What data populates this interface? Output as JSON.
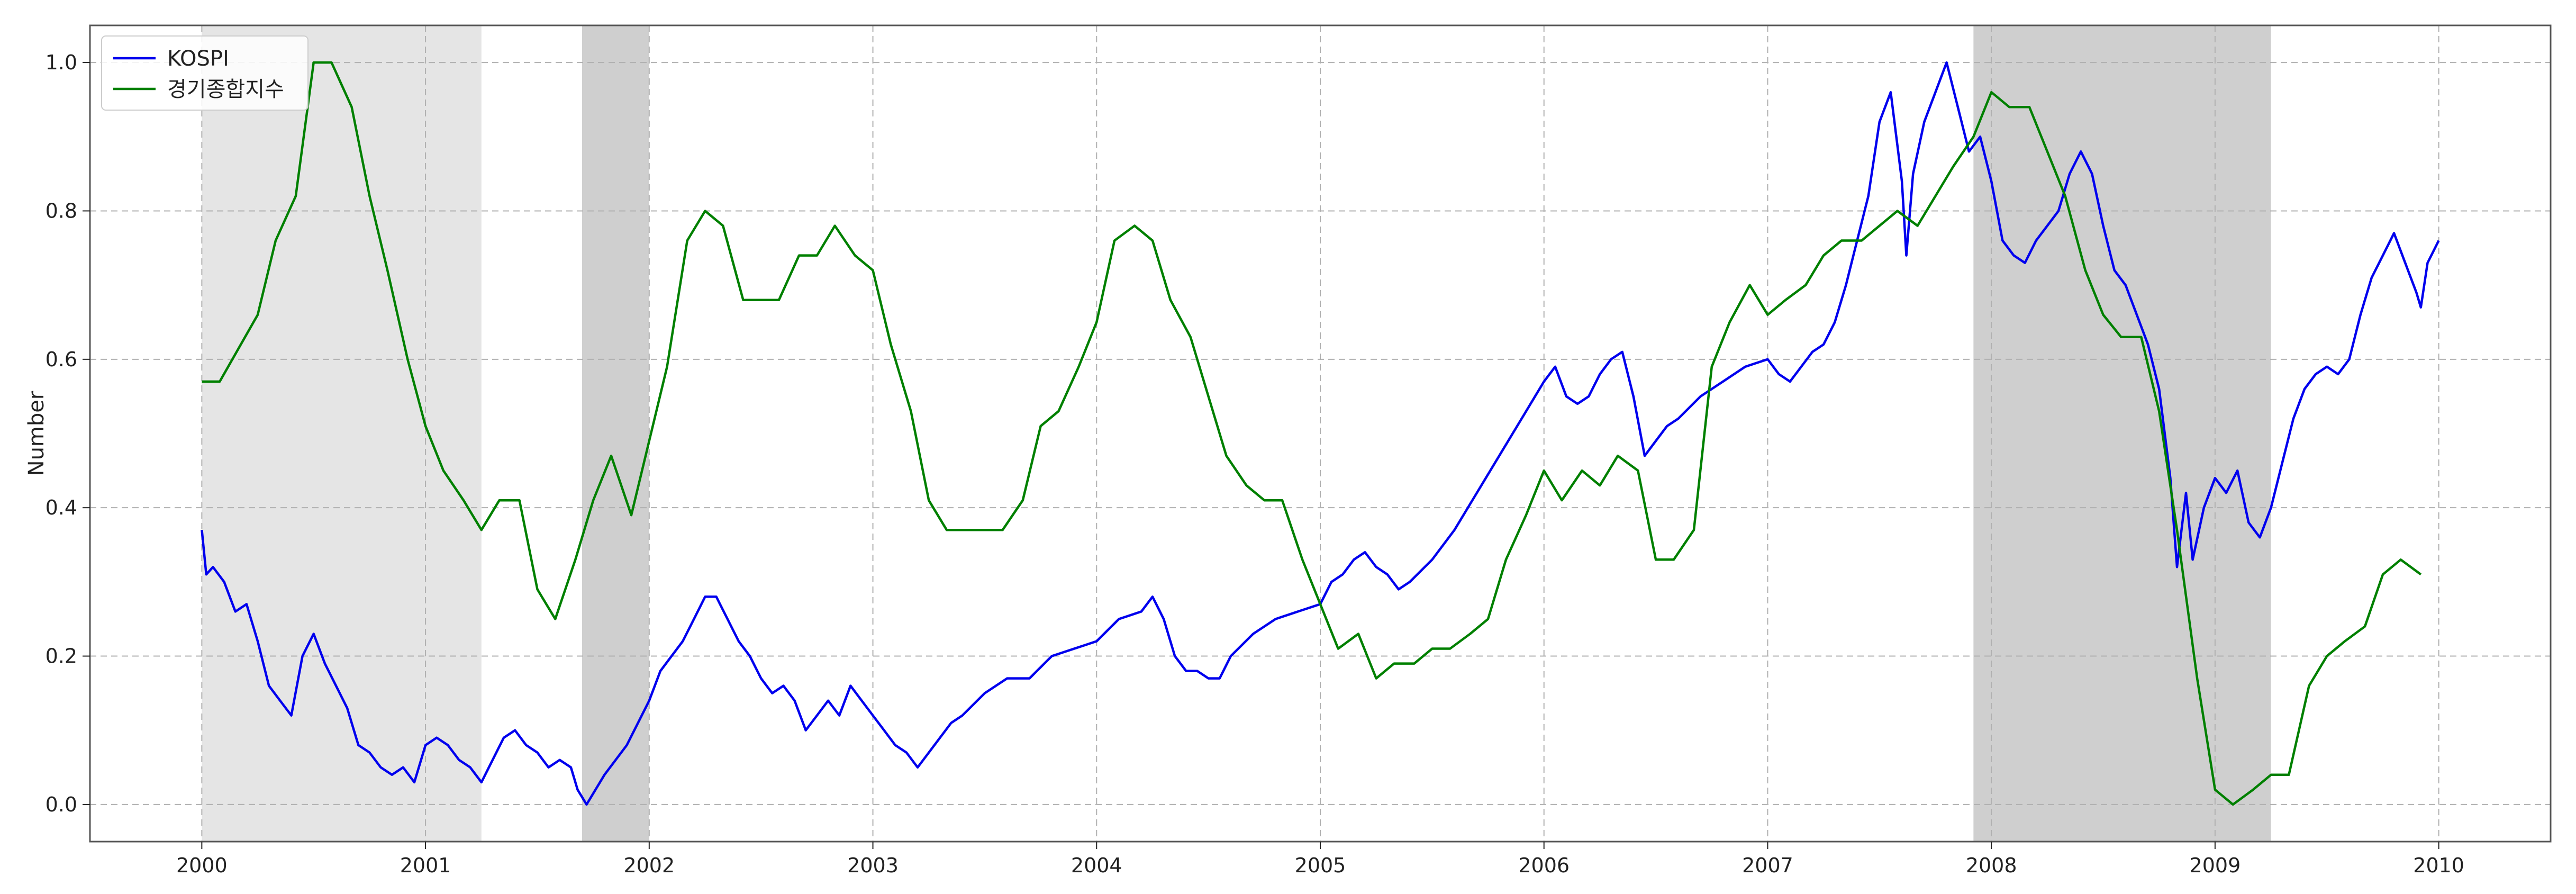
{
  "chart_data": {
    "type": "line",
    "xlabel": "",
    "ylabel": "Number",
    "xlim": [
      1999.5,
      2010.5
    ],
    "ylim": [
      -0.05,
      1.05
    ],
    "x_ticks": [
      "2000",
      "2001",
      "2002",
      "2003",
      "2004",
      "2005",
      "2006",
      "2007",
      "2008",
      "2009",
      "2010"
    ],
    "y_ticks": [
      "0.0",
      "0.2",
      "0.4",
      "0.6",
      "0.8",
      "1.0"
    ],
    "grid": true,
    "legend_position": "top-left",
    "shaded_regions": [
      {
        "start": 2000.0,
        "end": 2001.25,
        "tone": "light"
      },
      {
        "start": 2001.7,
        "end": 2002.0,
        "tone": "dark"
      },
      {
        "start": 2007.92,
        "end": 2009.25,
        "tone": "dark"
      }
    ],
    "colors": {
      "shade_light": "#e5e5e5",
      "shade_dark": "#cfcfcf",
      "grid": "#b0b0b0",
      "axis": "#555555"
    },
    "series": [
      {
        "name": "KOSPI",
        "color": "#0000ee",
        "points": [
          [
            2000.0,
            0.37
          ],
          [
            2000.02,
            0.31
          ],
          [
            2000.05,
            0.32
          ],
          [
            2000.1,
            0.3
          ],
          [
            2000.15,
            0.26
          ],
          [
            2000.2,
            0.27
          ],
          [
            2000.25,
            0.22
          ],
          [
            2000.3,
            0.16
          ],
          [
            2000.35,
            0.14
          ],
          [
            2000.4,
            0.12
          ],
          [
            2000.45,
            0.2
          ],
          [
            2000.5,
            0.23
          ],
          [
            2000.55,
            0.19
          ],
          [
            2000.6,
            0.16
          ],
          [
            2000.65,
            0.13
          ],
          [
            2000.7,
            0.08
          ],
          [
            2000.75,
            0.07
          ],
          [
            2000.8,
            0.05
          ],
          [
            2000.85,
            0.04
          ],
          [
            2000.9,
            0.05
          ],
          [
            2000.95,
            0.03
          ],
          [
            2001.0,
            0.08
          ],
          [
            2001.05,
            0.09
          ],
          [
            2001.1,
            0.08
          ],
          [
            2001.15,
            0.06
          ],
          [
            2001.2,
            0.05
          ],
          [
            2001.25,
            0.03
          ],
          [
            2001.3,
            0.06
          ],
          [
            2001.35,
            0.09
          ],
          [
            2001.4,
            0.1
          ],
          [
            2001.45,
            0.08
          ],
          [
            2001.5,
            0.07
          ],
          [
            2001.55,
            0.05
          ],
          [
            2001.6,
            0.06
          ],
          [
            2001.65,
            0.05
          ],
          [
            2001.68,
            0.02
          ],
          [
            2001.72,
            0.0
          ],
          [
            2001.8,
            0.04
          ],
          [
            2001.9,
            0.08
          ],
          [
            2002.0,
            0.14
          ],
          [
            2002.05,
            0.18
          ],
          [
            2002.1,
            0.2
          ],
          [
            2002.15,
            0.22
          ],
          [
            2002.2,
            0.25
          ],
          [
            2002.25,
            0.28
          ],
          [
            2002.3,
            0.28
          ],
          [
            2002.35,
            0.25
          ],
          [
            2002.4,
            0.22
          ],
          [
            2002.45,
            0.2
          ],
          [
            2002.5,
            0.17
          ],
          [
            2002.55,
            0.15
          ],
          [
            2002.6,
            0.16
          ],
          [
            2002.65,
            0.14
          ],
          [
            2002.7,
            0.1
          ],
          [
            2002.75,
            0.12
          ],
          [
            2002.8,
            0.14
          ],
          [
            2002.85,
            0.12
          ],
          [
            2002.9,
            0.16
          ],
          [
            2002.95,
            0.14
          ],
          [
            2003.0,
            0.12
          ],
          [
            2003.05,
            0.1
          ],
          [
            2003.1,
            0.08
          ],
          [
            2003.15,
            0.07
          ],
          [
            2003.2,
            0.05
          ],
          [
            2003.25,
            0.07
          ],
          [
            2003.3,
            0.09
          ],
          [
            2003.35,
            0.11
          ],
          [
            2003.4,
            0.12
          ],
          [
            2003.5,
            0.15
          ],
          [
            2003.6,
            0.17
          ],
          [
            2003.7,
            0.17
          ],
          [
            2003.8,
            0.2
          ],
          [
            2003.9,
            0.21
          ],
          [
            2004.0,
            0.22
          ],
          [
            2004.1,
            0.25
          ],
          [
            2004.2,
            0.26
          ],
          [
            2004.25,
            0.28
          ],
          [
            2004.3,
            0.25
          ],
          [
            2004.35,
            0.2
          ],
          [
            2004.4,
            0.18
          ],
          [
            2004.45,
            0.18
          ],
          [
            2004.5,
            0.17
          ],
          [
            2004.55,
            0.17
          ],
          [
            2004.6,
            0.2
          ],
          [
            2004.7,
            0.23
          ],
          [
            2004.8,
            0.25
          ],
          [
            2004.9,
            0.26
          ],
          [
            2005.0,
            0.27
          ],
          [
            2005.05,
            0.3
          ],
          [
            2005.1,
            0.31
          ],
          [
            2005.15,
            0.33
          ],
          [
            2005.2,
            0.34
          ],
          [
            2005.25,
            0.32
          ],
          [
            2005.3,
            0.31
          ],
          [
            2005.35,
            0.29
          ],
          [
            2005.4,
            0.3
          ],
          [
            2005.5,
            0.33
          ],
          [
            2005.6,
            0.37
          ],
          [
            2005.7,
            0.42
          ],
          [
            2005.8,
            0.47
          ],
          [
            2005.9,
            0.52
          ],
          [
            2006.0,
            0.57
          ],
          [
            2006.05,
            0.59
          ],
          [
            2006.1,
            0.55
          ],
          [
            2006.15,
            0.54
          ],
          [
            2006.2,
            0.55
          ],
          [
            2006.25,
            0.58
          ],
          [
            2006.3,
            0.6
          ],
          [
            2006.35,
            0.61
          ],
          [
            2006.4,
            0.55
          ],
          [
            2006.45,
            0.47
          ],
          [
            2006.5,
            0.49
          ],
          [
            2006.55,
            0.51
          ],
          [
            2006.6,
            0.52
          ],
          [
            2006.7,
            0.55
          ],
          [
            2006.8,
            0.57
          ],
          [
            2006.9,
            0.59
          ],
          [
            2007.0,
            0.6
          ],
          [
            2007.05,
            0.58
          ],
          [
            2007.1,
            0.57
          ],
          [
            2007.15,
            0.59
          ],
          [
            2007.2,
            0.61
          ],
          [
            2007.25,
            0.62
          ],
          [
            2007.3,
            0.65
          ],
          [
            2007.35,
            0.7
          ],
          [
            2007.4,
            0.76
          ],
          [
            2007.45,
            0.82
          ],
          [
            2007.5,
            0.92
          ],
          [
            2007.55,
            0.96
          ],
          [
            2007.6,
            0.84
          ],
          [
            2007.62,
            0.74
          ],
          [
            2007.65,
            0.85
          ],
          [
            2007.7,
            0.92
          ],
          [
            2007.75,
            0.96
          ],
          [
            2007.8,
            1.0
          ],
          [
            2007.85,
            0.94
          ],
          [
            2007.9,
            0.88
          ],
          [
            2007.95,
            0.9
          ],
          [
            2008.0,
            0.84
          ],
          [
            2008.05,
            0.76
          ],
          [
            2008.1,
            0.74
          ],
          [
            2008.15,
            0.73
          ],
          [
            2008.2,
            0.76
          ],
          [
            2008.25,
            0.78
          ],
          [
            2008.3,
            0.8
          ],
          [
            2008.35,
            0.85
          ],
          [
            2008.4,
            0.88
          ],
          [
            2008.45,
            0.85
          ],
          [
            2008.5,
            0.78
          ],
          [
            2008.55,
            0.72
          ],
          [
            2008.6,
            0.7
          ],
          [
            2008.65,
            0.66
          ],
          [
            2008.7,
            0.62
          ],
          [
            2008.75,
            0.56
          ],
          [
            2008.8,
            0.44
          ],
          [
            2008.83,
            0.32
          ],
          [
            2008.87,
            0.42
          ],
          [
            2008.9,
            0.33
          ],
          [
            2008.95,
            0.4
          ],
          [
            2009.0,
            0.44
          ],
          [
            2009.05,
            0.42
          ],
          [
            2009.1,
            0.45
          ],
          [
            2009.15,
            0.38
          ],
          [
            2009.2,
            0.36
          ],
          [
            2009.25,
            0.4
          ],
          [
            2009.3,
            0.46
          ],
          [
            2009.35,
            0.52
          ],
          [
            2009.4,
            0.56
          ],
          [
            2009.45,
            0.58
          ],
          [
            2009.5,
            0.59
          ],
          [
            2009.55,
            0.58
          ],
          [
            2009.6,
            0.6
          ],
          [
            2009.65,
            0.66
          ],
          [
            2009.7,
            0.71
          ],
          [
            2009.75,
            0.74
          ],
          [
            2009.8,
            0.77
          ],
          [
            2009.85,
            0.73
          ],
          [
            2009.9,
            0.69
          ],
          [
            2009.92,
            0.67
          ],
          [
            2009.95,
            0.73
          ],
          [
            2010.0,
            0.76
          ]
        ]
      },
      {
        "name": "경기종합지수",
        "color": "#008000",
        "points": [
          [
            2000.0,
            0.57
          ],
          [
            2000.08,
            0.57
          ],
          [
            2000.25,
            0.66
          ],
          [
            2000.33,
            0.76
          ],
          [
            2000.42,
            0.82
          ],
          [
            2000.5,
            1.0
          ],
          [
            2000.58,
            1.0
          ],
          [
            2000.67,
            0.94
          ],
          [
            2000.75,
            0.82
          ],
          [
            2000.83,
            0.72
          ],
          [
            2000.92,
            0.6
          ],
          [
            2001.0,
            0.51
          ],
          [
            2001.08,
            0.45
          ],
          [
            2001.17,
            0.41
          ],
          [
            2001.25,
            0.37
          ],
          [
            2001.33,
            0.41
          ],
          [
            2001.42,
            0.41
          ],
          [
            2001.5,
            0.29
          ],
          [
            2001.58,
            0.25
          ],
          [
            2001.67,
            0.33
          ],
          [
            2001.75,
            0.41
          ],
          [
            2001.83,
            0.47
          ],
          [
            2001.92,
            0.39
          ],
          [
            2002.0,
            0.49
          ],
          [
            2002.08,
            0.59
          ],
          [
            2002.17,
            0.76
          ],
          [
            2002.25,
            0.8
          ],
          [
            2002.33,
            0.78
          ],
          [
            2002.42,
            0.68
          ],
          [
            2002.5,
            0.68
          ],
          [
            2002.58,
            0.68
          ],
          [
            2002.67,
            0.74
          ],
          [
            2002.75,
            0.74
          ],
          [
            2002.83,
            0.78
          ],
          [
            2002.92,
            0.74
          ],
          [
            2003.0,
            0.72
          ],
          [
            2003.08,
            0.62
          ],
          [
            2003.17,
            0.53
          ],
          [
            2003.25,
            0.41
          ],
          [
            2003.33,
            0.37
          ],
          [
            2003.42,
            0.37
          ],
          [
            2003.5,
            0.37
          ],
          [
            2003.58,
            0.37
          ],
          [
            2003.67,
            0.41
          ],
          [
            2003.75,
            0.51
          ],
          [
            2003.83,
            0.53
          ],
          [
            2003.92,
            0.59
          ],
          [
            2004.0,
            0.65
          ],
          [
            2004.08,
            0.76
          ],
          [
            2004.17,
            0.78
          ],
          [
            2004.25,
            0.76
          ],
          [
            2004.33,
            0.68
          ],
          [
            2004.42,
            0.63
          ],
          [
            2004.5,
            0.55
          ],
          [
            2004.58,
            0.47
          ],
          [
            2004.67,
            0.43
          ],
          [
            2004.75,
            0.41
          ],
          [
            2004.83,
            0.41
          ],
          [
            2004.92,
            0.33
          ],
          [
            2005.0,
            0.27
          ],
          [
            2005.08,
            0.21
          ],
          [
            2005.17,
            0.23
          ],
          [
            2005.25,
            0.17
          ],
          [
            2005.33,
            0.19
          ],
          [
            2005.42,
            0.19
          ],
          [
            2005.5,
            0.21
          ],
          [
            2005.58,
            0.21
          ],
          [
            2005.67,
            0.23
          ],
          [
            2005.75,
            0.25
          ],
          [
            2005.83,
            0.33
          ],
          [
            2005.92,
            0.39
          ],
          [
            2006.0,
            0.45
          ],
          [
            2006.08,
            0.41
          ],
          [
            2006.17,
            0.45
          ],
          [
            2006.25,
            0.43
          ],
          [
            2006.33,
            0.47
          ],
          [
            2006.42,
            0.45
          ],
          [
            2006.5,
            0.33
          ],
          [
            2006.58,
            0.33
          ],
          [
            2006.67,
            0.37
          ],
          [
            2006.75,
            0.59
          ],
          [
            2006.83,
            0.65
          ],
          [
            2006.92,
            0.7
          ],
          [
            2007.0,
            0.66
          ],
          [
            2007.08,
            0.68
          ],
          [
            2007.17,
            0.7
          ],
          [
            2007.25,
            0.74
          ],
          [
            2007.33,
            0.76
          ],
          [
            2007.42,
            0.76
          ],
          [
            2007.5,
            0.78
          ],
          [
            2007.58,
            0.8
          ],
          [
            2007.67,
            0.78
          ],
          [
            2007.75,
            0.82
          ],
          [
            2007.83,
            0.86
          ],
          [
            2007.92,
            0.9
          ],
          [
            2008.0,
            0.96
          ],
          [
            2008.08,
            0.94
          ],
          [
            2008.17,
            0.94
          ],
          [
            2008.25,
            0.88
          ],
          [
            2008.33,
            0.82
          ],
          [
            2008.42,
            0.72
          ],
          [
            2008.5,
            0.66
          ],
          [
            2008.58,
            0.63
          ],
          [
            2008.67,
            0.63
          ],
          [
            2008.75,
            0.53
          ],
          [
            2008.83,
            0.37
          ],
          [
            2008.92,
            0.17
          ],
          [
            2009.0,
            0.02
          ],
          [
            2009.08,
            0.0
          ],
          [
            2009.17,
            0.02
          ],
          [
            2009.25,
            0.04
          ],
          [
            2009.33,
            0.04
          ],
          [
            2009.42,
            0.16
          ],
          [
            2009.5,
            0.2
          ],
          [
            2009.58,
            0.22
          ],
          [
            2009.67,
            0.24
          ],
          [
            2009.75,
            0.31
          ],
          [
            2009.83,
            0.33
          ],
          [
            2009.92,
            0.31
          ]
        ]
      }
    ]
  }
}
